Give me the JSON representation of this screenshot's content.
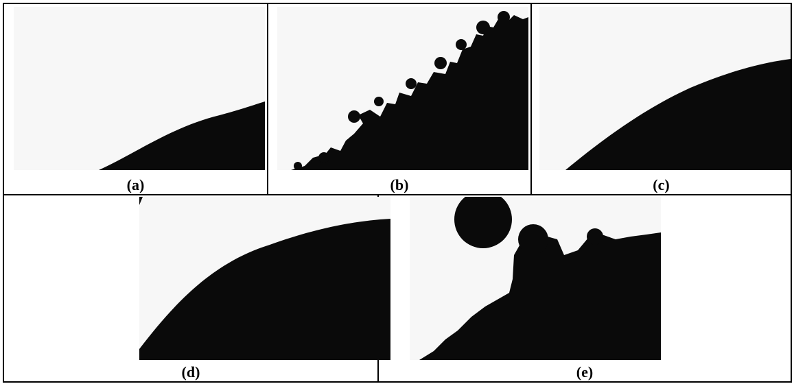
{
  "figure": {
    "panels": [
      {
        "id": "a",
        "caption": "(a)"
      },
      {
        "id": "b",
        "caption": "(b)"
      },
      {
        "id": "c",
        "caption": "(c)"
      },
      {
        "id": "d",
        "caption": "(d)"
      },
      {
        "id": "e",
        "caption": "(e)"
      }
    ]
  },
  "colors": {
    "particle": "#0a0a0a",
    "background": "#f7f7f7",
    "border": "#000000"
  }
}
